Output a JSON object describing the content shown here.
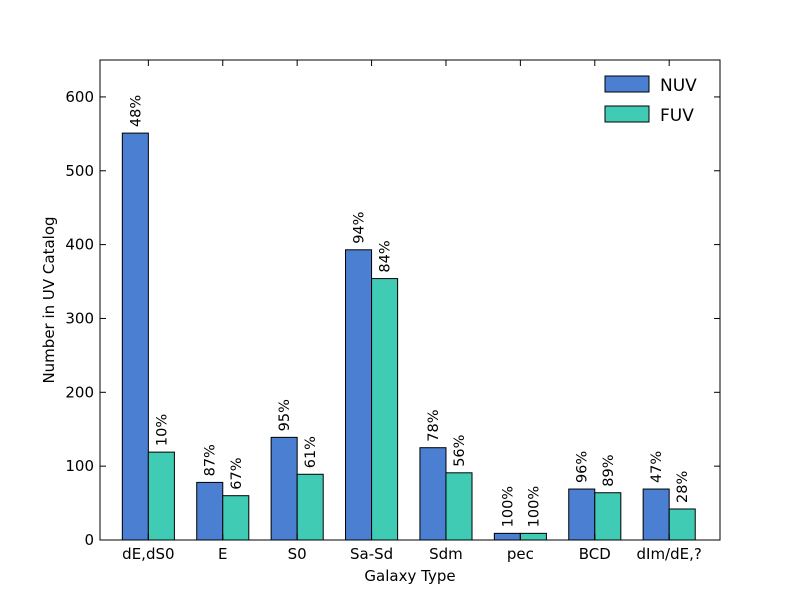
{
  "chart_data": {
    "type": "bar",
    "title": "",
    "xlabel": "Galaxy Type",
    "ylabel": "Number in UV Catalog",
    "ylim": [
      0,
      650
    ],
    "yticks": [
      0,
      100,
      200,
      300,
      400,
      500,
      600
    ],
    "grid": false,
    "legend_position": "top-right",
    "categories": [
      "dE,dS0",
      "E",
      "S0",
      "Sa-Sd",
      "Sdm",
      "pec",
      "BCD",
      "dIm/dE,?"
    ],
    "series": [
      {
        "name": "NUV",
        "color": "#4a7fd1",
        "values": [
          551,
          78,
          139,
          393,
          125,
          9,
          69,
          69
        ],
        "labels": [
          "48%",
          "87%",
          "95%",
          "94%",
          "78%",
          "100%",
          "96%",
          "47%"
        ]
      },
      {
        "name": "FUV",
        "color": "#40cbb5",
        "values": [
          119,
          60,
          89,
          354,
          91,
          9,
          64,
          42
        ],
        "labels": [
          "10%",
          "67%",
          "61%",
          "84%",
          "56%",
          "100%",
          "89%",
          "28%"
        ]
      }
    ]
  }
}
